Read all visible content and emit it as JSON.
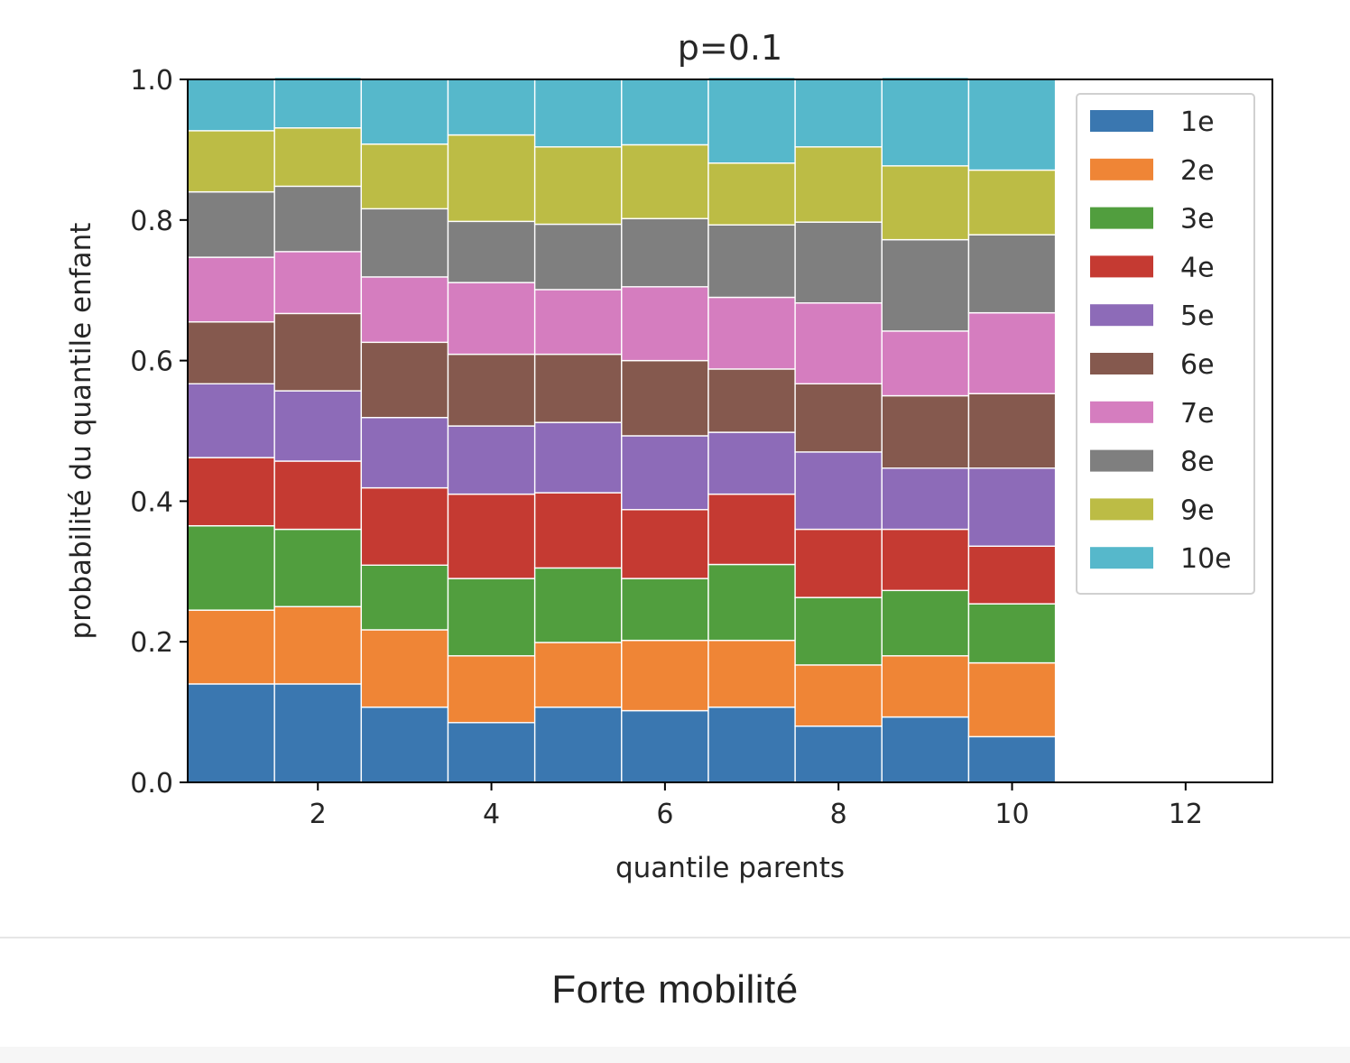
{
  "chart_data": {
    "type": "bar",
    "stacked": true,
    "title": "p=0.1",
    "xlabel": "quantile parents",
    "ylabel": "probabilité du quantile enfant",
    "xlim": [
      0.5,
      13
    ],
    "ylim": [
      0,
      1
    ],
    "xticks": [
      2,
      4,
      6,
      8,
      10,
      12
    ],
    "yticks": [
      0.0,
      0.2,
      0.4,
      0.6,
      0.8,
      1.0
    ],
    "x": [
      1,
      2,
      3,
      4,
      5,
      6,
      7,
      8,
      9,
      10
    ],
    "legend_position": "top-right",
    "series": [
      {
        "name": "1e",
        "color": "#3a77b0",
        "values": [
          0.14,
          0.14,
          0.107,
          0.085,
          0.107,
          0.102,
          0.107,
          0.08,
          0.093,
          0.065
        ]
      },
      {
        "name": "2e",
        "color": "#ef8536",
        "values": [
          0.105,
          0.11,
          0.11,
          0.095,
          0.092,
          0.1,
          0.095,
          0.087,
          0.087,
          0.105
        ]
      },
      {
        "name": "3e",
        "color": "#519e3e",
        "values": [
          0.12,
          0.11,
          0.092,
          0.11,
          0.106,
          0.088,
          0.108,
          0.096,
          0.093,
          0.084
        ]
      },
      {
        "name": "4e",
        "color": "#c53a32",
        "values": [
          0.097,
          0.097,
          0.11,
          0.12,
          0.107,
          0.098,
          0.1,
          0.097,
          0.087,
          0.082
        ]
      },
      {
        "name": "5e",
        "color": "#8d6bb8",
        "values": [
          0.105,
          0.1,
          0.1,
          0.097,
          0.1,
          0.105,
          0.088,
          0.11,
          0.087,
          0.111
        ]
      },
      {
        "name": "6e",
        "color": "#85594e",
        "values": [
          0.088,
          0.11,
          0.107,
          0.102,
          0.097,
          0.107,
          0.09,
          0.097,
          0.103,
          0.106
        ]
      },
      {
        "name": "7e",
        "color": "#d57dbf",
        "values": [
          0.092,
          0.088,
          0.093,
          0.102,
          0.092,
          0.105,
          0.102,
          0.115,
          0.092,
          0.115
        ]
      },
      {
        "name": "8e",
        "color": "#7f7f7f",
        "values": [
          0.093,
          0.093,
          0.097,
          0.087,
          0.093,
          0.097,
          0.103,
          0.115,
          0.13,
          0.111
        ]
      },
      {
        "name": "9e",
        "color": "#bcbc45",
        "values": [
          0.087,
          0.083,
          0.092,
          0.123,
          0.11,
          0.105,
          0.088,
          0.107,
          0.105,
          0.092
        ]
      },
      {
        "name": "10e",
        "color": "#56b8cb",
        "values": [
          0.075,
          0.072,
          0.092,
          0.08,
          0.098,
          0.095,
          0.122,
          0.097,
          0.126,
          0.13
        ]
      }
    ]
  },
  "caption": "Forte mobilité"
}
